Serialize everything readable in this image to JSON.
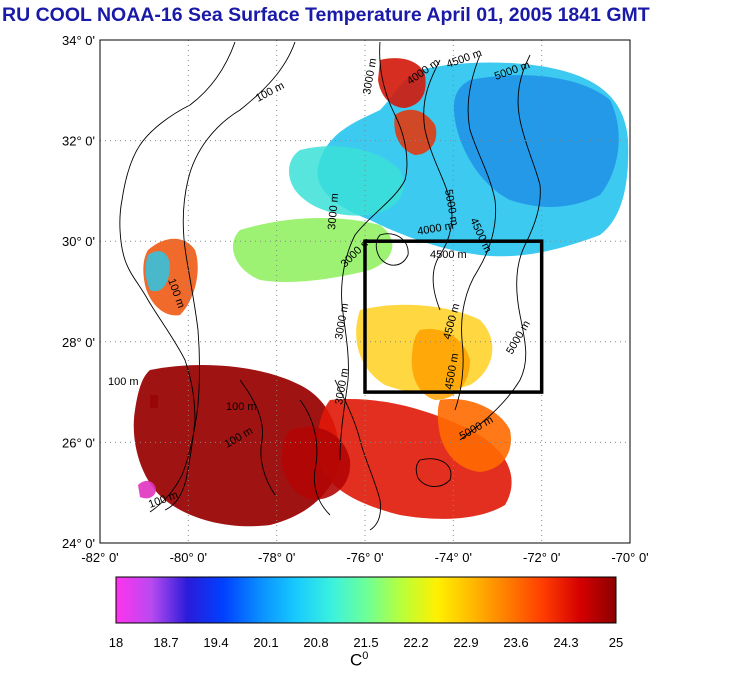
{
  "title": "RU COOL  NOAA-16 Sea Surface Temperature April 01, 2005 1841 GMT",
  "map": {
    "lat_labels": [
      "34° 0'",
      "32° 0'",
      "30° 0'",
      "28° 0'",
      "26° 0'",
      "24° 0'"
    ],
    "lon_labels": [
      "-82° 0'",
      "-80° 0'",
      "-78° 0'",
      "-76° 0'",
      "-74° 0'",
      "-72° 0'",
      "-70° 0'"
    ],
    "lat_range": [
      24,
      34
    ],
    "lon_range": [
      -82,
      -70
    ],
    "grid": "dotted",
    "contour_labels": [
      "100 m",
      "100 m",
      "100 m",
      "100 m",
      "3000 m",
      "3000 m",
      "3000 m",
      "3000 m",
      "3000 m",
      "4000 m",
      "4000 m",
      "4500 m",
      "4500 m",
      "4500 m",
      "4500 m",
      "4500 m",
      "5000 m",
      "5000 m",
      "5000 m",
      "5000 m",
      "100 m",
      "100 m"
    ],
    "study_box": {
      "lat_min": 27,
      "lat_max": 30,
      "lon_min": -76,
      "lon_max": -72
    }
  },
  "colorbar": {
    "tick_labels": [
      "18",
      "18.7",
      "19.4",
      "20.1",
      "20.8",
      "21.5",
      "22.2",
      "22.9",
      "23.6",
      "24.3",
      "25"
    ],
    "range": [
      18,
      25
    ],
    "unit_base": "C",
    "unit_sup": "0",
    "colors": [
      "#ff33ee",
      "#b84af0",
      "#2a1cd9",
      "#0040ff",
      "#0a8cff",
      "#16c8ff",
      "#39f0e0",
      "#6cff9a",
      "#b8ff3a",
      "#fff000",
      "#ffb800",
      "#ff7a00",
      "#ff3a00",
      "#d40000",
      "#8c0000"
    ]
  }
}
